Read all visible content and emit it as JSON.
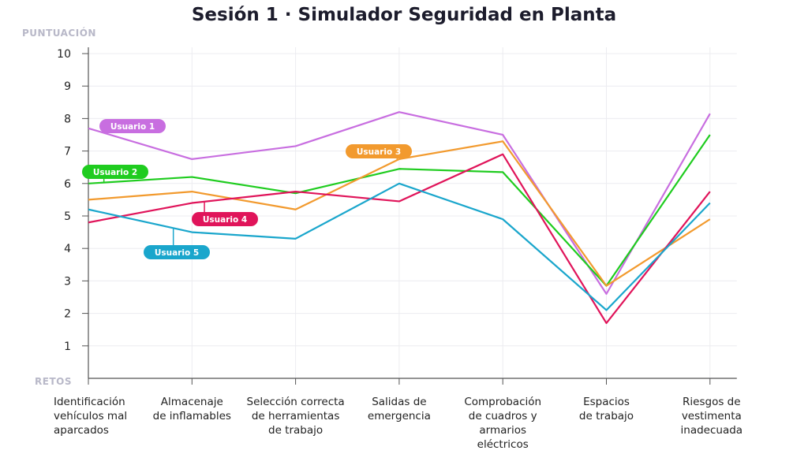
{
  "chart_data": {
    "type": "line",
    "title": "Sesión 1 · Simulador Seguridad en Planta",
    "ylabel": "PUNTUACIÓN",
    "xlabel": "RETOS",
    "ylim": [
      0,
      10.5
    ],
    "yticks": [
      "1",
      "2",
      "3",
      "4",
      "5",
      "6",
      "7",
      "8",
      "9",
      "10"
    ],
    "grid": true,
    "categories": [
      "Identificación vehículos mal aparcados",
      "Almacenaje de inflamables",
      "Selección correcta de herramientas de trabajo",
      "Salidas de emergencia",
      "Comprobación de cuadros y armarios eléctricos",
      "Espacios de trabajo",
      "Riesgos de vestimenta inadecuada"
    ],
    "category_lines": [
      [
        "Identificación",
        "vehículos mal",
        "aparcados"
      ],
      [
        "Almacenaje",
        "de inflamables"
      ],
      [
        "Selección correcta",
        "de herramientas",
        "de trabajo"
      ],
      [
        "Salidas de",
        "emergencia"
      ],
      [
        "Comprobación",
        "de cuadros y",
        "armarios",
        "eléctricos"
      ],
      [
        "Espacios",
        "de trabajo"
      ],
      [
        "Riesgos de",
        "vestimenta",
        "inadecuada"
      ]
    ],
    "series": [
      {
        "name": "Usuario 1",
        "color": "#c86ee0",
        "values": [
          7.7,
          6.75,
          7.15,
          8.2,
          7.5,
          2.6,
          8.15
        ]
      },
      {
        "name": "Usuario 2",
        "color": "#1fcc1f",
        "values": [
          6.0,
          6.2,
          5.7,
          6.45,
          6.35,
          2.85,
          7.5
        ]
      },
      {
        "name": "Usuario 3",
        "color": "#f29a2e",
        "values": [
          5.5,
          5.75,
          5.2,
          6.75,
          7.3,
          2.85,
          4.9
        ]
      },
      {
        "name": "Usuario 4",
        "color": "#e0145a",
        "values": [
          4.8,
          5.4,
          5.75,
          5.45,
          6.9,
          1.7,
          5.75
        ]
      },
      {
        "name": "Usuario 5",
        "color": "#1aa6cc",
        "values": [
          5.2,
          4.5,
          4.3,
          6.0,
          4.9,
          2.1,
          5.4
        ]
      }
    ]
  }
}
